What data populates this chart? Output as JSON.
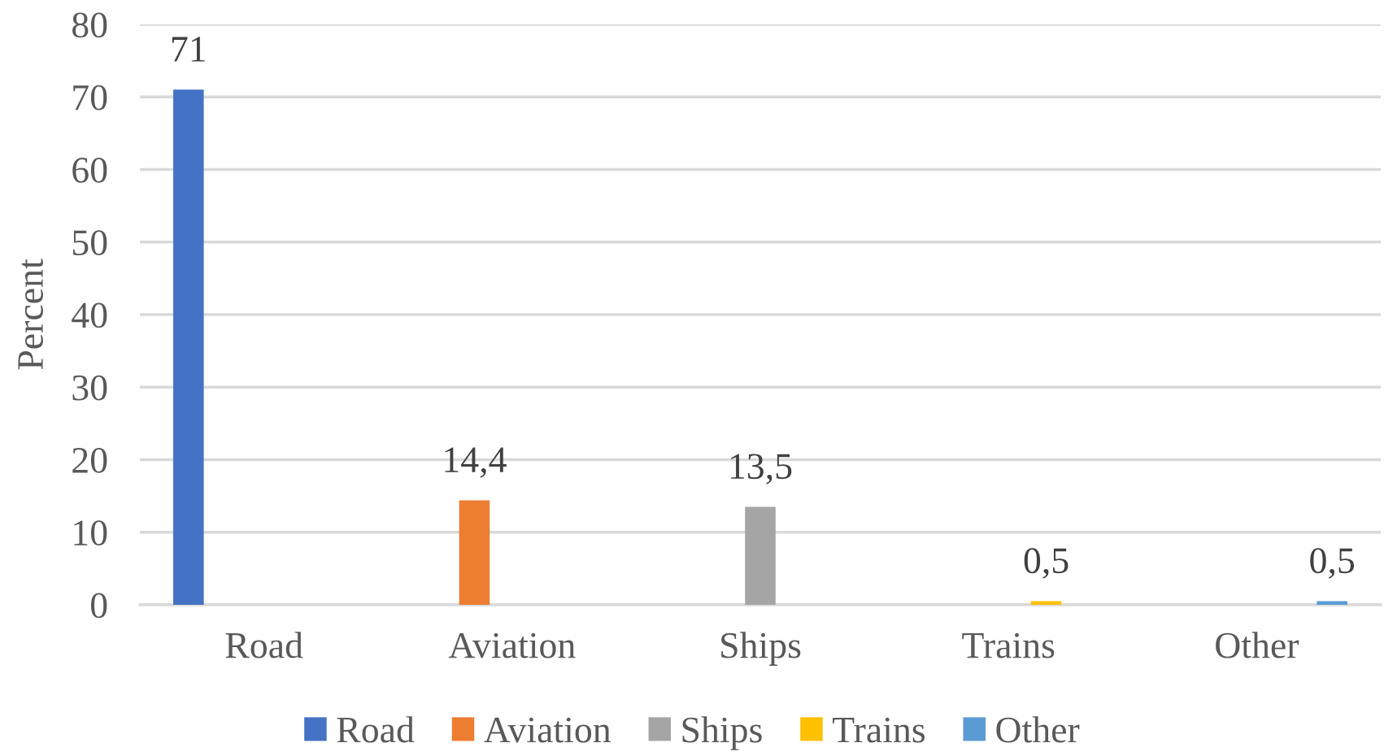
{
  "chart_data": {
    "type": "bar",
    "categories": [
      "Road",
      "Aviation",
      "Ships",
      "Trains",
      "Other"
    ],
    "ylabel": "Percent",
    "ylim": [
      0,
      80
    ],
    "yticks": [
      0,
      10,
      20,
      30,
      40,
      50,
      60,
      70,
      80
    ],
    "grid": "y",
    "legend": "bottom",
    "series": [
      {
        "name": "Road",
        "color": "#4472c4",
        "values": [
          71,
          null,
          null,
          null,
          null
        ],
        "value_labels": [
          "71",
          null,
          null,
          null,
          null
        ]
      },
      {
        "name": "Aviation",
        "color": "#ed7d31",
        "values": [
          null,
          14.4,
          null,
          null,
          null
        ],
        "value_labels": [
          null,
          "14,4",
          null,
          null,
          null
        ]
      },
      {
        "name": "Ships",
        "color": "#a5a5a5",
        "values": [
          null,
          null,
          13.5,
          null,
          null
        ],
        "value_labels": [
          null,
          null,
          "13,5",
          null,
          null
        ]
      },
      {
        "name": "Trains",
        "color": "#ffc000",
        "values": [
          null,
          null,
          null,
          0.5,
          null
        ],
        "value_labels": [
          null,
          null,
          null,
          "0,5",
          null
        ]
      },
      {
        "name": "Other",
        "color": "#5b9bd5",
        "values": [
          null,
          null,
          null,
          null,
          0.5
        ],
        "value_labels": [
          null,
          null,
          null,
          null,
          "0,5"
        ]
      }
    ]
  }
}
